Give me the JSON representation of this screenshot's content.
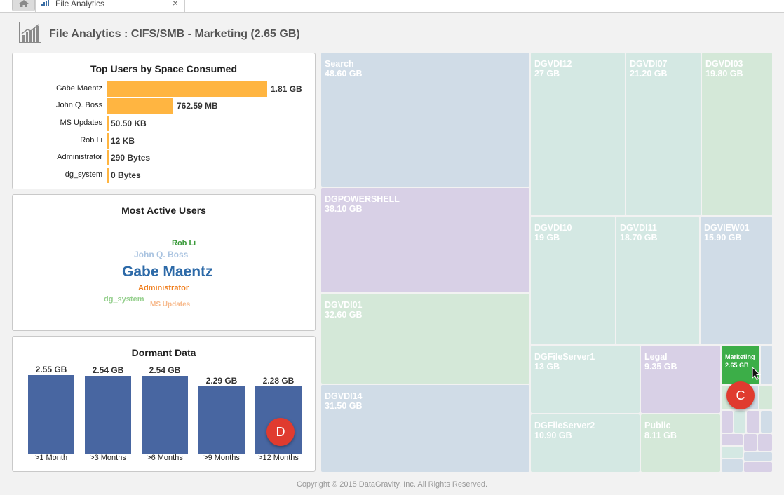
{
  "tab": {
    "label": "File Analytics",
    "close": "×"
  },
  "header": {
    "title": "File Analytics : CIFS/SMB - Marketing (2.65 GB)"
  },
  "top_users": {
    "title": "Top Users by Space Consumed",
    "rows": [
      {
        "user": "Gabe Maentz",
        "value": "1.81 GB"
      },
      {
        "user": "John Q. Boss",
        "value": "762.59 MB"
      },
      {
        "user": "MS Updates",
        "value": "50.50 KB"
      },
      {
        "user": "Rob Li",
        "value": "12 KB"
      },
      {
        "user": "Administrator",
        "value": "290 Bytes"
      },
      {
        "user": "dg_system",
        "value": "0 Bytes"
      }
    ]
  },
  "active_users": {
    "title": "Most Active Users",
    "words": [
      "Rob Li",
      "John Q. Boss",
      "Gabe Maentz",
      "Administrator",
      "dg_system",
      "MS Updates"
    ]
  },
  "dormant": {
    "title": "Dormant Data",
    "categories": [
      ">1 Month",
      ">3 Months",
      ">6 Months",
      ">9 Months",
      ">12 Months"
    ],
    "labels": [
      "2.55 GB",
      "2.54 GB",
      "2.54 GB",
      "2.29 GB",
      "2.28 GB"
    ],
    "values_gb": [
      2.55,
      2.54,
      2.54,
      2.29,
      2.28
    ],
    "color": "#4866a1"
  },
  "treemap": {
    "tiles": [
      {
        "name": "Search",
        "size": "48.60 GB"
      },
      {
        "name": "DGPOWERSHELL",
        "size": "38.10 GB"
      },
      {
        "name": "DGVDI01",
        "size": "32.60 GB"
      },
      {
        "name": "DGVDI14",
        "size": "31.50 GB"
      },
      {
        "name": "DGVDI12",
        "size": "27 GB"
      },
      {
        "name": "DGVDI07",
        "size": "21.20 GB"
      },
      {
        "name": "DGVDI03",
        "size": "19.80 GB"
      },
      {
        "name": "DGVDI10",
        "size": "19 GB"
      },
      {
        "name": "DGVDI11",
        "size": "18.70 GB"
      },
      {
        "name": "DGVIEW01",
        "size": "15.90 GB"
      },
      {
        "name": "DGFileServer1",
        "size": "13 GB"
      },
      {
        "name": "Legal",
        "size": "9.35 GB"
      },
      {
        "name": "DGFileServer2",
        "size": "10.90 GB"
      },
      {
        "name": "Public",
        "size": "8.11 GB"
      },
      {
        "name": "Marketing",
        "size": "2.65 GB"
      }
    ],
    "selected": "Marketing"
  },
  "badges": {
    "c": "C",
    "d": "D"
  },
  "colors": {
    "accent_bar": "#ffb541",
    "selected": "#3cae48",
    "badge": "#e03b2f"
  },
  "footer": "Copyright © 2015 DataGravity, Inc. All Rights Reserved."
}
